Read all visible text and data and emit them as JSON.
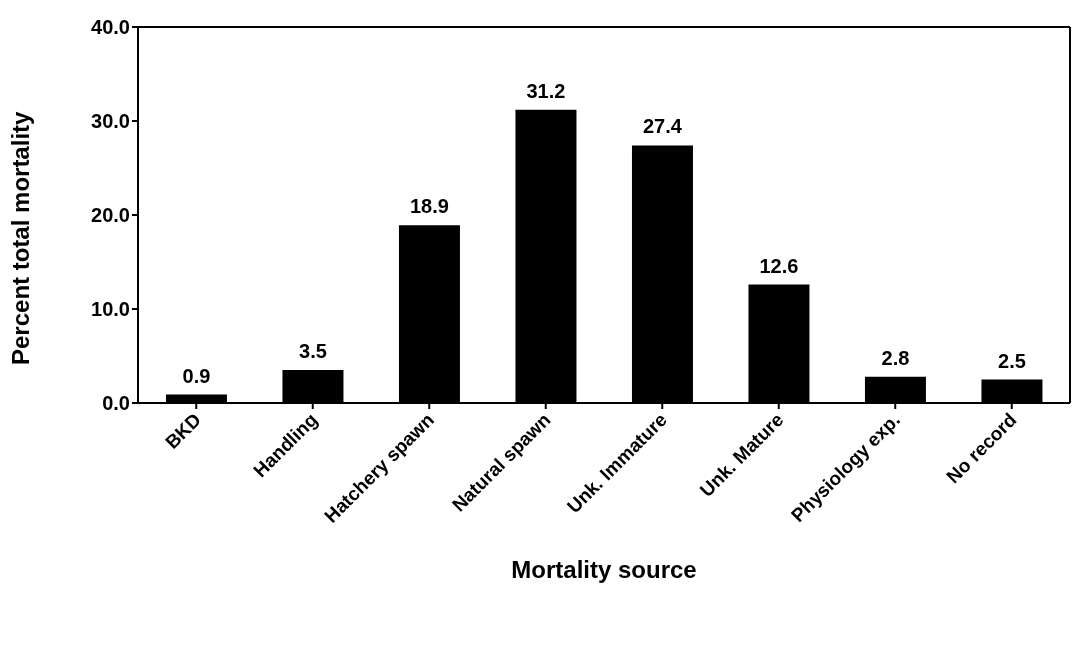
{
  "chart_data": {
    "type": "bar",
    "xlabel": "Mortality source",
    "ylabel": "Percent total mortality",
    "categories": [
      "BKD",
      "Handling",
      "Hatchery spawn",
      "Natural spawn",
      "Unk. Immature",
      "Unk. Mature",
      "Physiology exp.",
      "No record"
    ],
    "values": [
      0.9,
      3.5,
      18.9,
      31.2,
      27.4,
      12.6,
      2.8,
      2.5
    ],
    "color": "#000000",
    "ylim": [
      0,
      40
    ],
    "yticks": [
      {
        "value": 0,
        "label": "0.0"
      },
      {
        "value": 10,
        "label": "10.0"
      },
      {
        "value": 20,
        "label": "20.0"
      },
      {
        "value": 30,
        "label": "30.0"
      },
      {
        "value": 40,
        "label": "40.0"
      }
    ],
    "data_labels": true,
    "grid": false
  }
}
